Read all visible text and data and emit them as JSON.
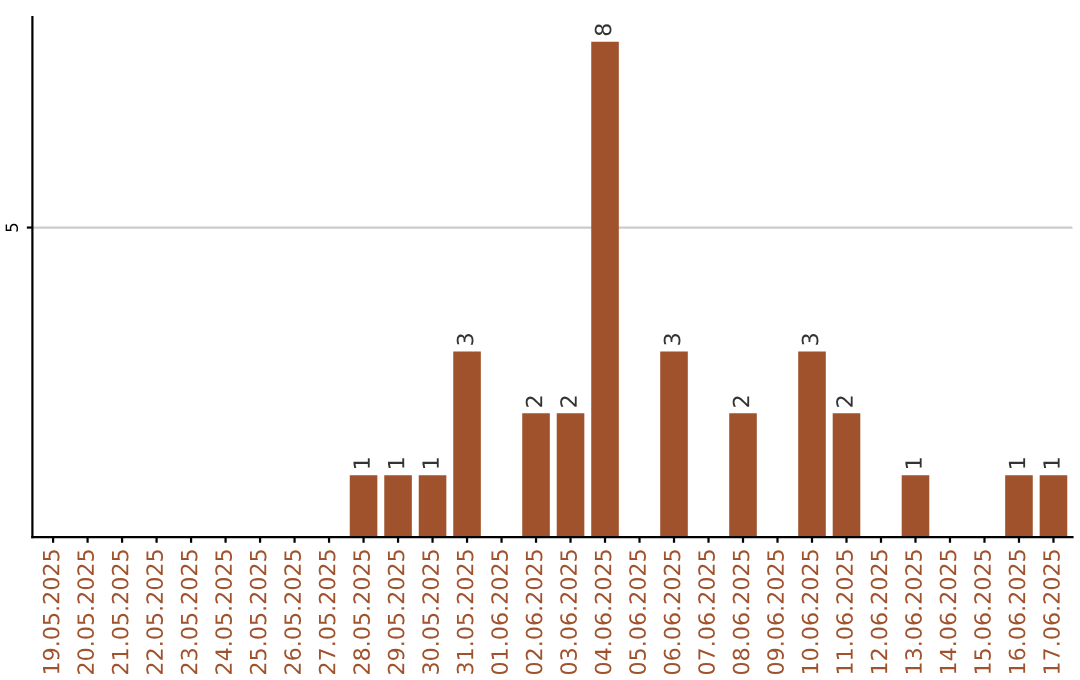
{
  "chart_data": {
    "type": "bar",
    "categories": [
      "19.05.2025",
      "20.05.2025",
      "21.05.2025",
      "22.05.2025",
      "23.05.2025",
      "24.05.2025",
      "25.05.2025",
      "26.05.2025",
      "27.05.2025",
      "28.05.2025",
      "29.05.2025",
      "30.05.2025",
      "31.05.2025",
      "01.06.2025",
      "02.06.2025",
      "03.06.2025",
      "04.06.2025",
      "05.06.2025",
      "06.06.2025",
      "07.06.2025",
      "08.06.2025",
      "09.06.2025",
      "10.06.2025",
      "11.06.2025",
      "12.06.2025",
      "13.06.2025",
      "14.06.2025",
      "15.06.2025",
      "16.06.2025",
      "17.06.2025"
    ],
    "values": [
      0,
      0,
      0,
      0,
      0,
      0,
      0,
      0,
      0,
      1,
      1,
      1,
      3,
      0,
      2,
      2,
      8,
      0,
      3,
      0,
      2,
      0,
      3,
      2,
      0,
      1,
      0,
      0,
      1,
      1
    ],
    "value_labels": [
      null,
      null,
      null,
      null,
      null,
      null,
      null,
      null,
      null,
      "1",
      "1",
      "1",
      "3",
      null,
      "2",
      "2",
      "8",
      null,
      "3",
      null,
      "2",
      null,
      "3",
      "2",
      null,
      "1",
      null,
      null,
      "1",
      "1"
    ],
    "color": "#a0522d",
    "ylim": [
      0,
      8.4
    ],
    "yticks": [
      5
    ],
    "grid": "y"
  }
}
